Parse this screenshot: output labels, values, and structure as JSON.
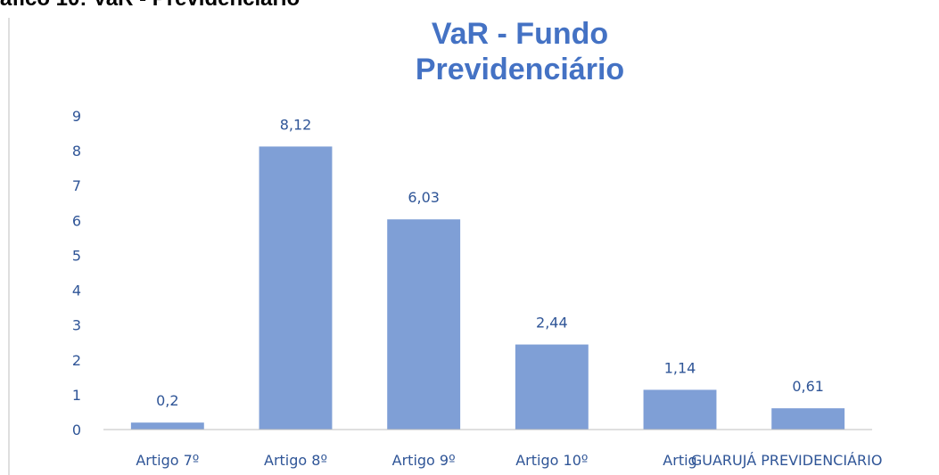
{
  "caption": "áfico 10: VaR - Previdenciário",
  "chart_data": {
    "type": "bar",
    "title": [
      "VaR - Fundo",
      "Previdenciário"
    ],
    "categories": [
      "Artigo 7º",
      "Artigo 8º",
      "Artigo 9º",
      "Artigo 10º",
      "Artig",
      "GUARUJÁ PREVIDENCIÁRIO"
    ],
    "values": [
      0.2,
      8.12,
      6.03,
      2.44,
      1.14,
      0.61
    ],
    "value_labels": [
      "0,2",
      "8,12",
      "6,03",
      "2,44",
      "1,14",
      "0,61"
    ],
    "color": "#7f9fd6",
    "ylim": [
      0,
      9
    ],
    "yticks": [
      0,
      1,
      2,
      3,
      4,
      5,
      6,
      7,
      8,
      9
    ],
    "grid": false
  }
}
